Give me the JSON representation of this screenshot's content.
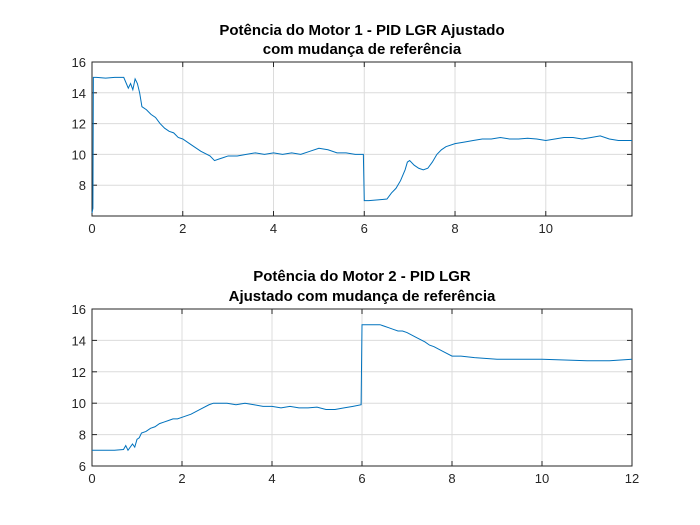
{
  "chart_data": [
    {
      "type": "line",
      "title_lines": [
        "Potência do Motor 1 - PID LGR Ajustado",
        "com mudança de referência"
      ],
      "xlabel": "",
      "ylabel": "",
      "xlim": [
        0,
        11.9
      ],
      "ylim": [
        6,
        16
      ],
      "xticks": [
        0,
        2,
        4,
        6,
        8,
        10
      ],
      "xtick_labels": [
        "0",
        "2",
        "4",
        "6",
        "8",
        "10"
      ],
      "yticks": [
        8,
        10,
        12,
        14,
        16
      ],
      "ytick_labels": [
        "8",
        "10",
        "12",
        "14",
        "16"
      ],
      "grid": true,
      "series": [
        {
          "color": "#0072bd",
          "x": [
            0,
            0.02,
            0.03,
            0.05,
            0.1,
            0.3,
            0.5,
            0.7,
            0.8,
            0.85,
            0.9,
            0.95,
            1.0,
            1.05,
            1.1,
            1.2,
            1.3,
            1.4,
            1.5,
            1.6,
            1.7,
            1.8,
            1.9,
            2.0,
            2.2,
            2.4,
            2.6,
            2.7,
            2.8,
            2.9,
            3.0,
            3.2,
            3.4,
            3.6,
            3.8,
            4.0,
            4.2,
            4.4,
            4.6,
            4.8,
            5.0,
            5.2,
            5.4,
            5.6,
            5.8,
            5.98,
            6.0,
            6.01,
            6.1,
            6.3,
            6.5,
            6.6,
            6.7,
            6.8,
            6.9,
            6.95,
            7.0,
            7.1,
            7.2,
            7.3,
            7.4,
            7.5,
            7.6,
            7.7,
            7.8,
            8.0,
            8.2,
            8.4,
            8.6,
            8.8,
            9.0,
            9.2,
            9.4,
            9.6,
            9.8,
            10.0,
            10.2,
            10.4,
            10.6,
            10.8,
            11.0,
            11.2,
            11.4,
            11.6,
            11.8,
            11.9
          ],
          "y": [
            6.2,
            6.5,
            15.0,
            15.0,
            15.0,
            14.95,
            15.0,
            15.0,
            14.3,
            14.6,
            14.2,
            14.9,
            14.6,
            14.0,
            13.1,
            12.9,
            12.6,
            12.4,
            12.0,
            11.7,
            11.5,
            11.4,
            11.1,
            11.0,
            10.6,
            10.2,
            9.9,
            9.6,
            9.7,
            9.8,
            9.9,
            9.9,
            10.0,
            10.1,
            10.0,
            10.1,
            10.0,
            10.1,
            10.0,
            10.2,
            10.4,
            10.3,
            10.1,
            10.1,
            10.0,
            10.0,
            7.0,
            7.0,
            7.0,
            7.05,
            7.1,
            7.5,
            7.8,
            8.3,
            9.0,
            9.5,
            9.6,
            9.3,
            9.1,
            9.0,
            9.1,
            9.5,
            10.0,
            10.3,
            10.5,
            10.7,
            10.8,
            10.9,
            11.0,
            11.0,
            11.1,
            11.0,
            11.0,
            11.05,
            11.0,
            10.9,
            11.0,
            11.1,
            11.1,
            11.0,
            11.1,
            11.2,
            11.0,
            10.9,
            10.9,
            10.9
          ]
        }
      ]
    },
    {
      "type": "line",
      "title_lines": [
        "Potência do Motor 2 - PID LGR",
        "Ajustado com mudança de referência"
      ],
      "xlabel": "",
      "ylabel": "",
      "xlim": [
        0,
        12
      ],
      "ylim": [
        6,
        16
      ],
      "xticks": [
        0,
        2,
        4,
        6,
        8,
        10,
        12
      ],
      "xtick_labels": [
        "0",
        "2",
        "4",
        "6",
        "8",
        "10",
        "12"
      ],
      "yticks": [
        6,
        8,
        10,
        12,
        14,
        16
      ],
      "ytick_labels": [
        "6",
        "8",
        "10",
        "12",
        "14",
        "16"
      ],
      "grid": true,
      "series": [
        {
          "color": "#0072bd",
          "x": [
            0,
            0.1,
            0.3,
            0.5,
            0.7,
            0.75,
            0.8,
            0.9,
            0.95,
            1.0,
            1.05,
            1.1,
            1.2,
            1.3,
            1.4,
            1.5,
            1.6,
            1.7,
            1.8,
            1.9,
            2.0,
            2.2,
            2.4,
            2.6,
            2.7,
            2.8,
            3.0,
            3.2,
            3.4,
            3.6,
            3.8,
            4.0,
            4.2,
            4.4,
            4.6,
            4.8,
            5.0,
            5.2,
            5.4,
            5.6,
            5.8,
            5.98,
            6.0,
            6.01,
            6.2,
            6.4,
            6.5,
            6.6,
            6.7,
            6.8,
            6.9,
            7.0,
            7.2,
            7.4,
            7.5,
            7.6,
            7.8,
            8.0,
            8.2,
            8.5,
            9.0,
            9.5,
            10.0,
            10.5,
            11.0,
            11.5,
            12.0
          ],
          "y": [
            7.0,
            7.0,
            7.0,
            7.0,
            7.05,
            7.3,
            7.0,
            7.4,
            7.2,
            7.7,
            7.8,
            8.1,
            8.2,
            8.4,
            8.5,
            8.7,
            8.8,
            8.9,
            9.0,
            9.0,
            9.1,
            9.3,
            9.6,
            9.9,
            10.0,
            10.0,
            10.0,
            9.9,
            10.0,
            9.9,
            9.8,
            9.8,
            9.7,
            9.8,
            9.7,
            9.7,
            9.75,
            9.6,
            9.6,
            9.7,
            9.8,
            9.9,
            15.0,
            15.0,
            15.0,
            15.0,
            14.9,
            14.8,
            14.7,
            14.6,
            14.6,
            14.5,
            14.2,
            13.9,
            13.7,
            13.6,
            13.3,
            13.0,
            13.0,
            12.9,
            12.8,
            12.8,
            12.8,
            12.75,
            12.7,
            12.7,
            12.8
          ]
        }
      ]
    }
  ]
}
